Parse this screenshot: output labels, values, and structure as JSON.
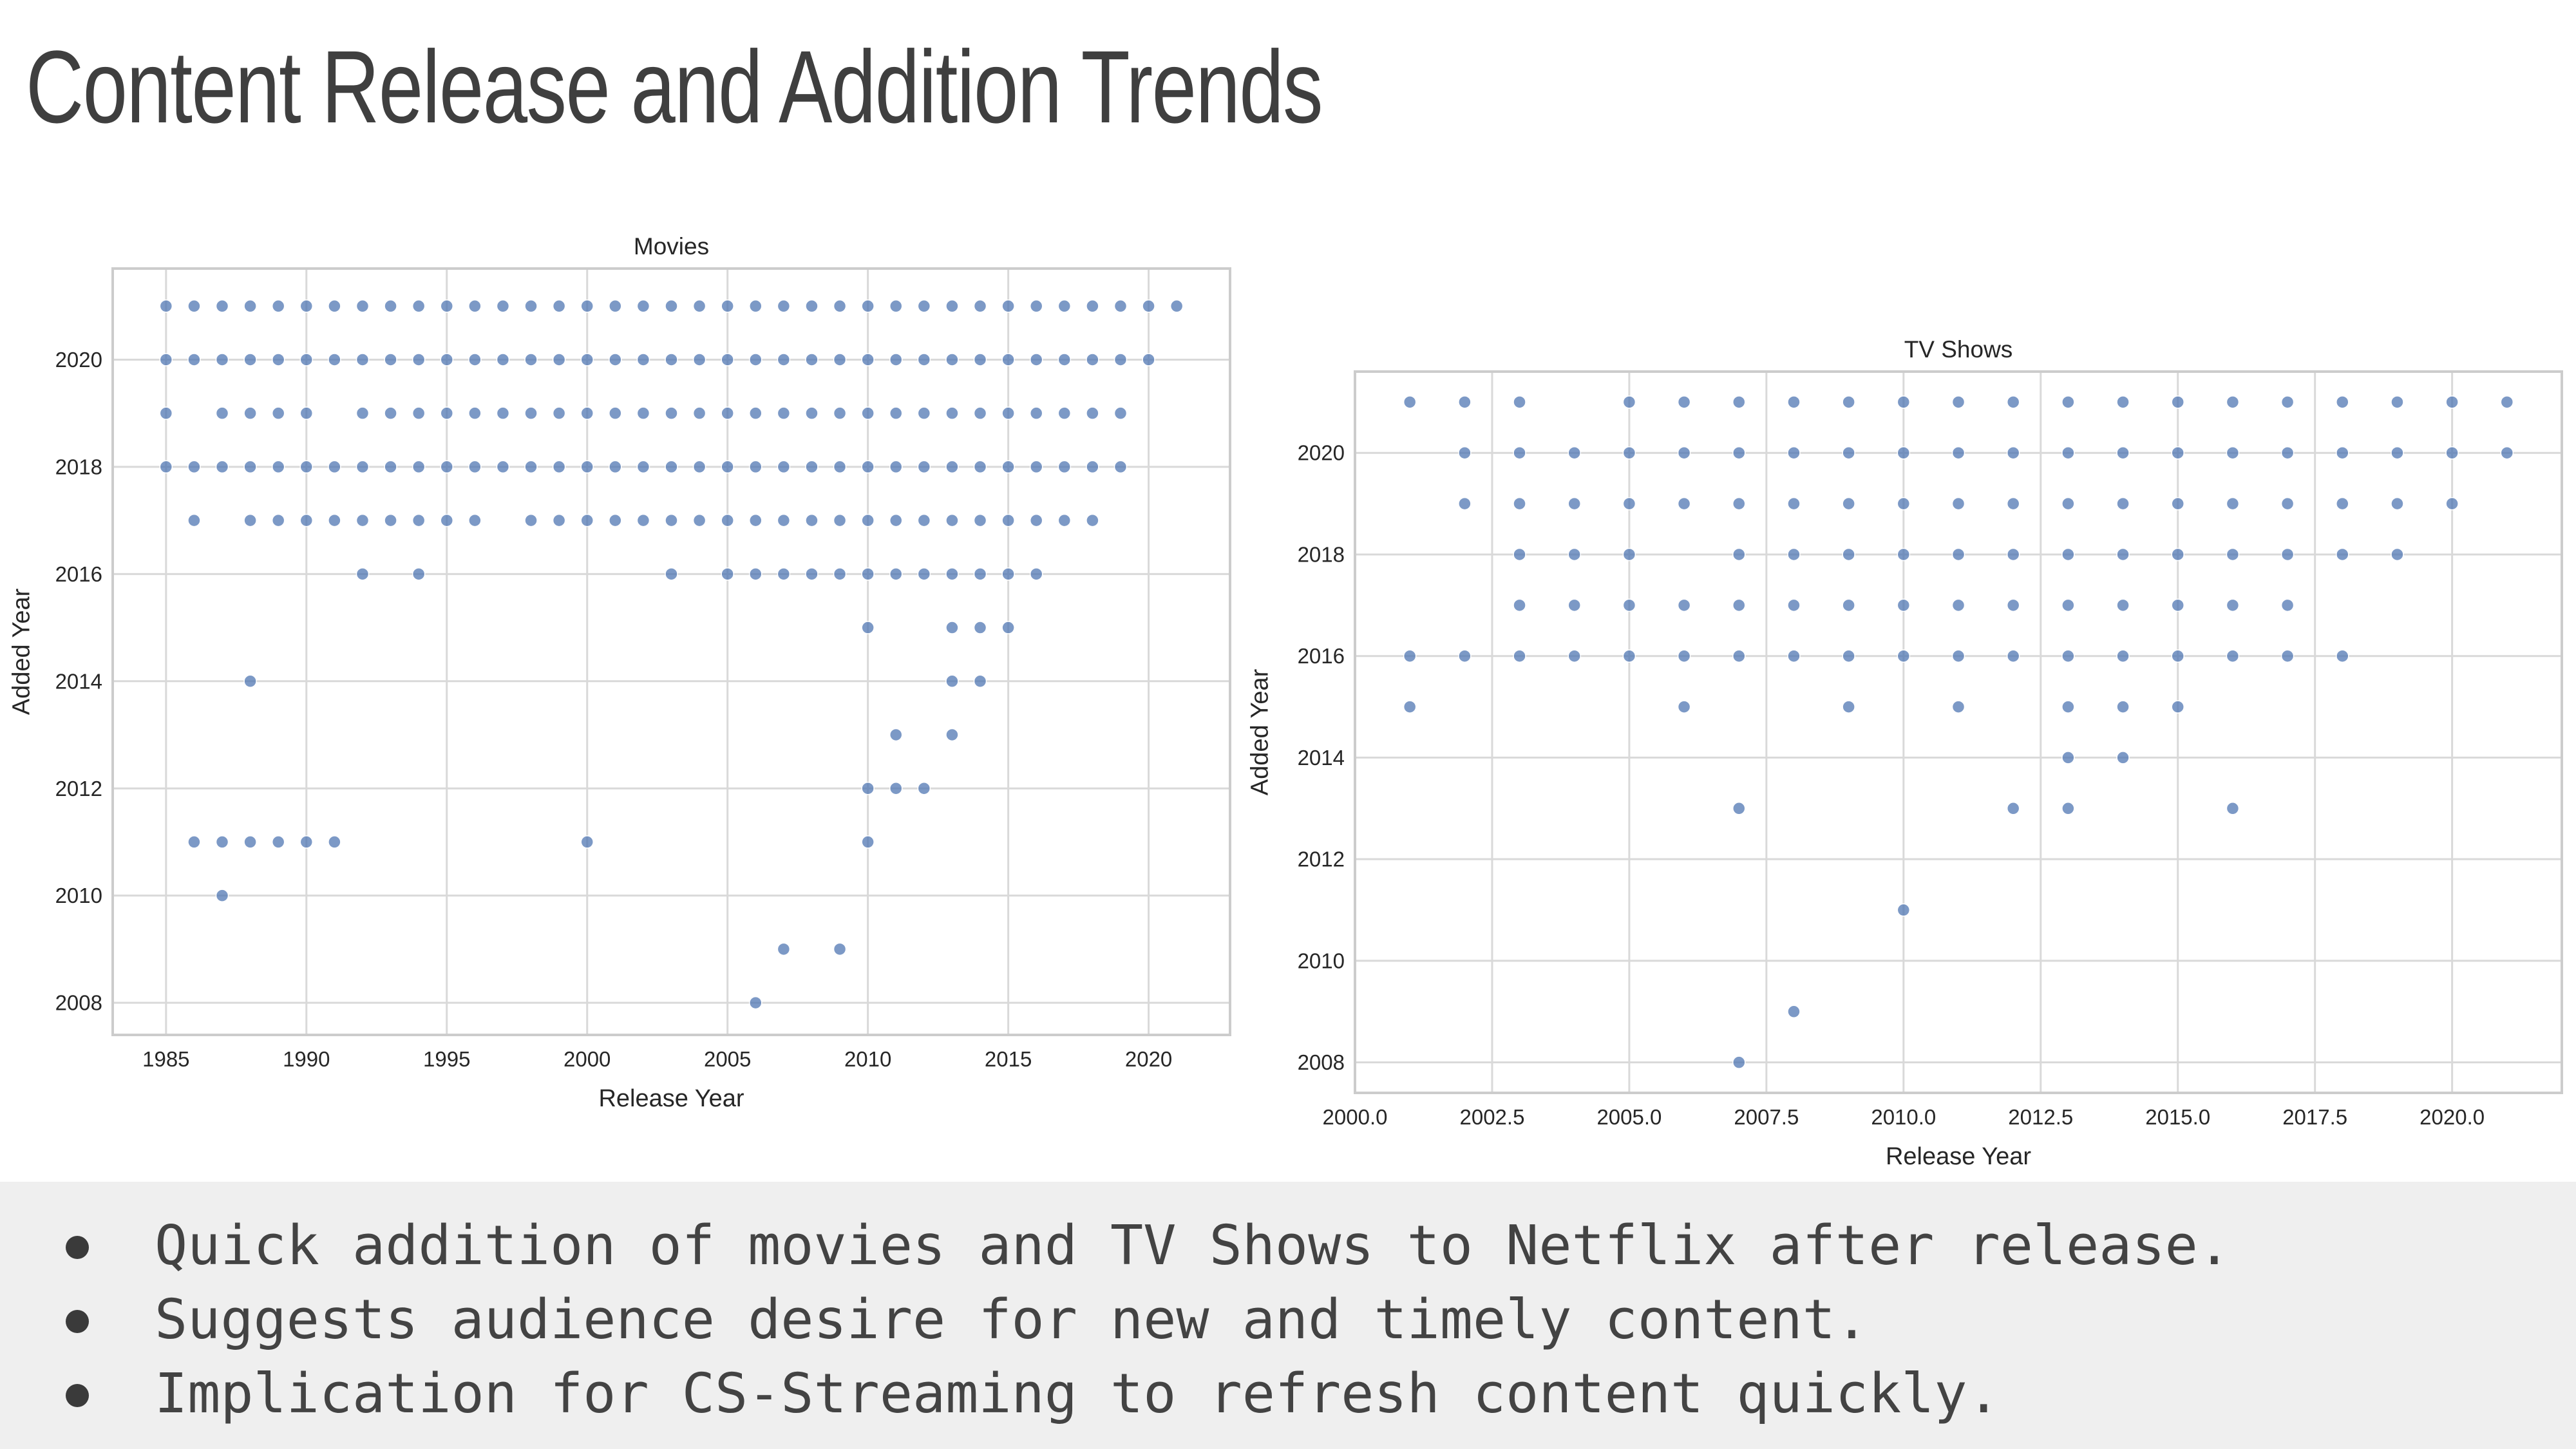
{
  "slide": {
    "title": "Content Release and Addition Trends",
    "bullets": [
      "Quick addition of movies and TV Shows to Netflix after release.",
      "Suggests audience desire for new and timely content.",
      "Implication for CS-Streaming to refresh content quickly."
    ]
  },
  "colors": {
    "point": "#4a72b0",
    "grid": "#d9d9d9",
    "frame": "#cccccc",
    "bullet_band": "#efefef",
    "text": "#262626"
  },
  "chart_data": [
    {
      "type": "scatter",
      "title": "Movies",
      "xlabel": "Release Year",
      "ylabel": "Added Year",
      "xlim": [
        1983.1,
        2022.9
      ],
      "ylim": [
        2007.4,
        2021.7
      ],
      "xticks": [
        "1985",
        "1990",
        "1995",
        "2000",
        "2005",
        "2010",
        "2015",
        "2020"
      ],
      "yticks": [
        "2008",
        "2010",
        "2012",
        "2014",
        "2016",
        "2018",
        "2020"
      ],
      "grid": true,
      "points": [
        [
          1985,
          2021
        ],
        [
          1986,
          2021
        ],
        [
          1987,
          2021
        ],
        [
          1988,
          2021
        ],
        [
          1989,
          2021
        ],
        [
          1990,
          2021
        ],
        [
          1991,
          2021
        ],
        [
          1992,
          2021
        ],
        [
          1993,
          2021
        ],
        [
          1994,
          2021
        ],
        [
          1995,
          2021
        ],
        [
          1996,
          2021
        ],
        [
          1997,
          2021
        ],
        [
          1998,
          2021
        ],
        [
          1999,
          2021
        ],
        [
          2000,
          2021
        ],
        [
          2001,
          2021
        ],
        [
          2002,
          2021
        ],
        [
          2003,
          2021
        ],
        [
          2004,
          2021
        ],
        [
          2005,
          2021
        ],
        [
          2006,
          2021
        ],
        [
          2007,
          2021
        ],
        [
          2008,
          2021
        ],
        [
          2009,
          2021
        ],
        [
          2010,
          2021
        ],
        [
          2011,
          2021
        ],
        [
          2012,
          2021
        ],
        [
          2013,
          2021
        ],
        [
          2014,
          2021
        ],
        [
          2015,
          2021
        ],
        [
          2016,
          2021
        ],
        [
          2017,
          2021
        ],
        [
          2018,
          2021
        ],
        [
          2019,
          2021
        ],
        [
          2020,
          2021
        ],
        [
          2021,
          2021
        ],
        [
          1985,
          2020
        ],
        [
          1986,
          2020
        ],
        [
          1987,
          2020
        ],
        [
          1988,
          2020
        ],
        [
          1989,
          2020
        ],
        [
          1990,
          2020
        ],
        [
          1991,
          2020
        ],
        [
          1992,
          2020
        ],
        [
          1993,
          2020
        ],
        [
          1994,
          2020
        ],
        [
          1995,
          2020
        ],
        [
          1996,
          2020
        ],
        [
          1997,
          2020
        ],
        [
          1998,
          2020
        ],
        [
          1999,
          2020
        ],
        [
          2000,
          2020
        ],
        [
          2001,
          2020
        ],
        [
          2002,
          2020
        ],
        [
          2003,
          2020
        ],
        [
          2004,
          2020
        ],
        [
          2005,
          2020
        ],
        [
          2006,
          2020
        ],
        [
          2007,
          2020
        ],
        [
          2008,
          2020
        ],
        [
          2009,
          2020
        ],
        [
          2010,
          2020
        ],
        [
          2011,
          2020
        ],
        [
          2012,
          2020
        ],
        [
          2013,
          2020
        ],
        [
          2014,
          2020
        ],
        [
          2015,
          2020
        ],
        [
          2016,
          2020
        ],
        [
          2017,
          2020
        ],
        [
          2018,
          2020
        ],
        [
          2019,
          2020
        ],
        [
          2020,
          2020
        ],
        [
          1985,
          2019
        ],
        [
          1987,
          2019
        ],
        [
          1988,
          2019
        ],
        [
          1989,
          2019
        ],
        [
          1990,
          2019
        ],
        [
          1992,
          2019
        ],
        [
          1993,
          2019
        ],
        [
          1994,
          2019
        ],
        [
          1995,
          2019
        ],
        [
          1996,
          2019
        ],
        [
          1997,
          2019
        ],
        [
          1998,
          2019
        ],
        [
          1999,
          2019
        ],
        [
          2000,
          2019
        ],
        [
          2001,
          2019
        ],
        [
          2002,
          2019
        ],
        [
          2003,
          2019
        ],
        [
          2004,
          2019
        ],
        [
          2005,
          2019
        ],
        [
          2006,
          2019
        ],
        [
          2007,
          2019
        ],
        [
          2008,
          2019
        ],
        [
          2009,
          2019
        ],
        [
          2010,
          2019
        ],
        [
          2011,
          2019
        ],
        [
          2012,
          2019
        ],
        [
          2013,
          2019
        ],
        [
          2014,
          2019
        ],
        [
          2015,
          2019
        ],
        [
          2016,
          2019
        ],
        [
          2017,
          2019
        ],
        [
          2018,
          2019
        ],
        [
          2019,
          2019
        ],
        [
          1985,
          2018
        ],
        [
          1986,
          2018
        ],
        [
          1987,
          2018
        ],
        [
          1988,
          2018
        ],
        [
          1989,
          2018
        ],
        [
          1990,
          2018
        ],
        [
          1991,
          2018
        ],
        [
          1992,
          2018
        ],
        [
          1993,
          2018
        ],
        [
          1994,
          2018
        ],
        [
          1995,
          2018
        ],
        [
          1996,
          2018
        ],
        [
          1997,
          2018
        ],
        [
          1998,
          2018
        ],
        [
          1999,
          2018
        ],
        [
          2000,
          2018
        ],
        [
          2001,
          2018
        ],
        [
          2002,
          2018
        ],
        [
          2003,
          2018
        ],
        [
          2004,
          2018
        ],
        [
          2005,
          2018
        ],
        [
          2006,
          2018
        ],
        [
          2007,
          2018
        ],
        [
          2008,
          2018
        ],
        [
          2009,
          2018
        ],
        [
          2010,
          2018
        ],
        [
          2011,
          2018
        ],
        [
          2012,
          2018
        ],
        [
          2013,
          2018
        ],
        [
          2014,
          2018
        ],
        [
          2015,
          2018
        ],
        [
          2016,
          2018
        ],
        [
          2017,
          2018
        ],
        [
          2018,
          2018
        ],
        [
          2019,
          2018
        ],
        [
          1986,
          2017
        ],
        [
          1988,
          2017
        ],
        [
          1989,
          2017
        ],
        [
          1990,
          2017
        ],
        [
          1991,
          2017
        ],
        [
          1992,
          2017
        ],
        [
          1993,
          2017
        ],
        [
          1994,
          2017
        ],
        [
          1995,
          2017
        ],
        [
          1996,
          2017
        ],
        [
          1998,
          2017
        ],
        [
          1999,
          2017
        ],
        [
          2000,
          2017
        ],
        [
          2001,
          2017
        ],
        [
          2002,
          2017
        ],
        [
          2003,
          2017
        ],
        [
          2004,
          2017
        ],
        [
          2005,
          2017
        ],
        [
          2006,
          2017
        ],
        [
          2007,
          2017
        ],
        [
          2008,
          2017
        ],
        [
          2009,
          2017
        ],
        [
          2010,
          2017
        ],
        [
          2011,
          2017
        ],
        [
          2012,
          2017
        ],
        [
          2013,
          2017
        ],
        [
          2014,
          2017
        ],
        [
          2015,
          2017
        ],
        [
          2016,
          2017
        ],
        [
          2017,
          2017
        ],
        [
          2018,
          2017
        ],
        [
          1992,
          2016
        ],
        [
          1994,
          2016
        ],
        [
          2003,
          2016
        ],
        [
          2005,
          2016
        ],
        [
          2006,
          2016
        ],
        [
          2007,
          2016
        ],
        [
          2008,
          2016
        ],
        [
          2009,
          2016
        ],
        [
          2010,
          2016
        ],
        [
          2011,
          2016
        ],
        [
          2012,
          2016
        ],
        [
          2013,
          2016
        ],
        [
          2014,
          2016
        ],
        [
          2015,
          2016
        ],
        [
          2016,
          2016
        ],
        [
          2010,
          2015
        ],
        [
          2013,
          2015
        ],
        [
          2014,
          2015
        ],
        [
          2015,
          2015
        ],
        [
          1988,
          2014
        ],
        [
          2013,
          2014
        ],
        [
          2014,
          2014
        ],
        [
          2011,
          2013
        ],
        [
          2013,
          2013
        ],
        [
          2010,
          2012
        ],
        [
          2011,
          2012
        ],
        [
          2012,
          2012
        ],
        [
          1986,
          2011
        ],
        [
          1987,
          2011
        ],
        [
          1988,
          2011
        ],
        [
          1989,
          2011
        ],
        [
          1990,
          2011
        ],
        [
          1991,
          2011
        ],
        [
          2000,
          2011
        ],
        [
          2010,
          2011
        ],
        [
          1987,
          2010
        ],
        [
          2007,
          2009
        ],
        [
          2009,
          2009
        ],
        [
          2006,
          2008
        ]
      ]
    },
    {
      "type": "scatter",
      "title": "TV Shows",
      "xlabel": "Release Year",
      "ylabel": "Added Year",
      "xlim": [
        2000,
        2022
      ],
      "ylim": [
        2007.4,
        2021.6
      ],
      "xticks": [
        "2000.0",
        "2002.5",
        "2005.0",
        "2007.5",
        "2010.0",
        "2012.5",
        "2015.0",
        "2017.5",
        "2020.0"
      ],
      "yticks": [
        "2008",
        "2010",
        "2012",
        "2014",
        "2016",
        "2018",
        "2020"
      ],
      "grid": true,
      "points": [
        [
          2001,
          2021
        ],
        [
          2002,
          2021
        ],
        [
          2003,
          2021
        ],
        [
          2005,
          2021
        ],
        [
          2006,
          2021
        ],
        [
          2007,
          2021
        ],
        [
          2008,
          2021
        ],
        [
          2009,
          2021
        ],
        [
          2010,
          2021
        ],
        [
          2011,
          2021
        ],
        [
          2012,
          2021
        ],
        [
          2013,
          2021
        ],
        [
          2014,
          2021
        ],
        [
          2015,
          2021
        ],
        [
          2016,
          2021
        ],
        [
          2017,
          2021
        ],
        [
          2018,
          2021
        ],
        [
          2019,
          2021
        ],
        [
          2020,
          2021
        ],
        [
          2021,
          2021
        ],
        [
          2002,
          2020
        ],
        [
          2003,
          2020
        ],
        [
          2004,
          2020
        ],
        [
          2005,
          2020
        ],
        [
          2006,
          2020
        ],
        [
          2007,
          2020
        ],
        [
          2008,
          2020
        ],
        [
          2009,
          2020
        ],
        [
          2010,
          2020
        ],
        [
          2011,
          2020
        ],
        [
          2012,
          2020
        ],
        [
          2013,
          2020
        ],
        [
          2014,
          2020
        ],
        [
          2015,
          2020
        ],
        [
          2016,
          2020
        ],
        [
          2017,
          2020
        ],
        [
          2018,
          2020
        ],
        [
          2019,
          2020
        ],
        [
          2020,
          2020
        ],
        [
          2021,
          2020
        ],
        [
          2002,
          2019
        ],
        [
          2003,
          2019
        ],
        [
          2004,
          2019
        ],
        [
          2005,
          2019
        ],
        [
          2006,
          2019
        ],
        [
          2007,
          2019
        ],
        [
          2008,
          2019
        ],
        [
          2009,
          2019
        ],
        [
          2010,
          2019
        ],
        [
          2011,
          2019
        ],
        [
          2012,
          2019
        ],
        [
          2013,
          2019
        ],
        [
          2014,
          2019
        ],
        [
          2015,
          2019
        ],
        [
          2016,
          2019
        ],
        [
          2017,
          2019
        ],
        [
          2018,
          2019
        ],
        [
          2019,
          2019
        ],
        [
          2020,
          2019
        ],
        [
          2003,
          2018
        ],
        [
          2004,
          2018
        ],
        [
          2005,
          2018
        ],
        [
          2007,
          2018
        ],
        [
          2008,
          2018
        ],
        [
          2009,
          2018
        ],
        [
          2010,
          2018
        ],
        [
          2011,
          2018
        ],
        [
          2012,
          2018
        ],
        [
          2013,
          2018
        ],
        [
          2014,
          2018
        ],
        [
          2015,
          2018
        ],
        [
          2016,
          2018
        ],
        [
          2017,
          2018
        ],
        [
          2018,
          2018
        ],
        [
          2019,
          2018
        ],
        [
          2003,
          2017
        ],
        [
          2004,
          2017
        ],
        [
          2005,
          2017
        ],
        [
          2006,
          2017
        ],
        [
          2007,
          2017
        ],
        [
          2008,
          2017
        ],
        [
          2009,
          2017
        ],
        [
          2010,
          2017
        ],
        [
          2011,
          2017
        ],
        [
          2012,
          2017
        ],
        [
          2013,
          2017
        ],
        [
          2014,
          2017
        ],
        [
          2015,
          2017
        ],
        [
          2016,
          2017
        ],
        [
          2017,
          2017
        ],
        [
          2001,
          2016
        ],
        [
          2002,
          2016
        ],
        [
          2003,
          2016
        ],
        [
          2004,
          2016
        ],
        [
          2005,
          2016
        ],
        [
          2006,
          2016
        ],
        [
          2007,
          2016
        ],
        [
          2008,
          2016
        ],
        [
          2009,
          2016
        ],
        [
          2010,
          2016
        ],
        [
          2011,
          2016
        ],
        [
          2012,
          2016
        ],
        [
          2013,
          2016
        ],
        [
          2014,
          2016
        ],
        [
          2015,
          2016
        ],
        [
          2016,
          2016
        ],
        [
          2017,
          2016
        ],
        [
          2018,
          2016
        ],
        [
          2001,
          2015
        ],
        [
          2006,
          2015
        ],
        [
          2009,
          2015
        ],
        [
          2011,
          2015
        ],
        [
          2013,
          2015
        ],
        [
          2014,
          2015
        ],
        [
          2015,
          2015
        ],
        [
          2013,
          2014
        ],
        [
          2014,
          2014
        ],
        [
          2007,
          2013
        ],
        [
          2012,
          2013
        ],
        [
          2013,
          2013
        ],
        [
          2016,
          2013
        ],
        [
          2010,
          2011
        ],
        [
          2008,
          2009
        ],
        [
          2007,
          2008
        ]
      ]
    }
  ]
}
